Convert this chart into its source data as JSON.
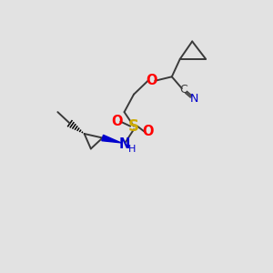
{
  "bg_color": "#e2e2e2",
  "figsize": [
    3.0,
    3.0
  ],
  "dpi": 100,
  "colors": {
    "bond": "#3a3a3a",
    "O": "#ff0000",
    "N": "#0000cd",
    "S": "#ccaa00",
    "N_wedge": "#0000cd"
  },
  "bond_lw": 1.4
}
